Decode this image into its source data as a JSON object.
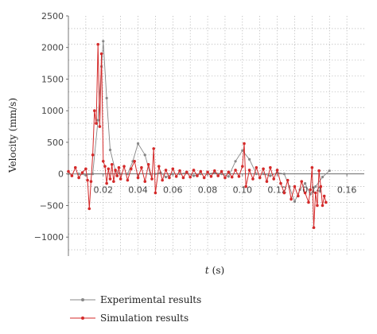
{
  "chart_data": {
    "type": "line",
    "xlabel_italic": "t",
    "xlabel_unit": "(s)",
    "ylabel": "Velocity (mm/s)",
    "xlim": [
      0,
      0.17
    ],
    "ylim": [
      -1300,
      2500
    ],
    "xticks": [
      0.02,
      0.04,
      0.06,
      0.08,
      0.1,
      0.12,
      0.14,
      0.16
    ],
    "xtick_labels": [
      "0.02",
      "0.04",
      "0.06",
      "0.08",
      "0.10",
      "0.12",
      "0.14",
      "0.16"
    ],
    "yticks": [
      -1000,
      -500,
      0,
      500,
      1000,
      1500,
      2000,
      2500
    ],
    "ytick_labels": [
      "−1000",
      "−500",
      "0",
      "500",
      "1000",
      "1500",
      "2000",
      "2500"
    ],
    "grid": true,
    "legend_position": "bottom",
    "series": [
      {
        "name": "Experimental results",
        "color": "#888888",
        "x": [
          0.0,
          0.006,
          0.01,
          0.014,
          0.017,
          0.019,
          0.02,
          0.022,
          0.024,
          0.027,
          0.03,
          0.034,
          0.037,
          0.04,
          0.044,
          0.047,
          0.05,
          0.053,
          0.056,
          0.06,
          0.064,
          0.068,
          0.072,
          0.076,
          0.08,
          0.084,
          0.088,
          0.092,
          0.096,
          0.1,
          0.104,
          0.108,
          0.112,
          0.116,
          0.12,
          0.124,
          0.127,
          0.13,
          0.133,
          0.136,
          0.139,
          0.142,
          0.146,
          0.15
        ],
        "y": [
          0,
          0,
          -20,
          0,
          850,
          1700,
          2100,
          1200,
          380,
          50,
          0,
          0,
          200,
          480,
          300,
          0,
          0,
          20,
          -50,
          0,
          0,
          20,
          -30,
          0,
          0,
          20,
          0,
          -40,
          200,
          370,
          230,
          0,
          0,
          -30,
          20,
          0,
          -200,
          -440,
          -250,
          -150,
          -320,
          -200,
          -50,
          50
        ]
      },
      {
        "name": "Simulation results",
        "color": "#d42a2a",
        "x": [
          0.0,
          0.002,
          0.004,
          0.006,
          0.008,
          0.01,
          0.011,
          0.012,
          0.013,
          0.014,
          0.015,
          0.016,
          0.017,
          0.018,
          0.019,
          0.02,
          0.021,
          0.022,
          0.023,
          0.024,
          0.025,
          0.026,
          0.027,
          0.028,
          0.029,
          0.03,
          0.032,
          0.034,
          0.036,
          0.038,
          0.04,
          0.042,
          0.044,
          0.046,
          0.048,
          0.049,
          0.05,
          0.052,
          0.054,
          0.056,
          0.058,
          0.06,
          0.062,
          0.064,
          0.066,
          0.068,
          0.07,
          0.072,
          0.074,
          0.076,
          0.078,
          0.08,
          0.082,
          0.084,
          0.086,
          0.088,
          0.09,
          0.092,
          0.094,
          0.096,
          0.098,
          0.1,
          0.101,
          0.102,
          0.104,
          0.106,
          0.108,
          0.11,
          0.112,
          0.114,
          0.116,
          0.118,
          0.12,
          0.122,
          0.124,
          0.126,
          0.128,
          0.13,
          0.132,
          0.134,
          0.136,
          0.138,
          0.139,
          0.14,
          0.141,
          0.142,
          0.143,
          0.144,
          0.145,
          0.146,
          0.147,
          0.148
        ],
        "y": [
          40,
          -30,
          100,
          -60,
          20,
          80,
          -100,
          -550,
          -120,
          300,
          1000,
          800,
          2050,
          750,
          1900,
          200,
          120,
          -150,
          80,
          -80,
          150,
          -120,
          60,
          -30,
          100,
          -80,
          120,
          -100,
          80,
          200,
          -60,
          100,
          -120,
          150,
          -80,
          400,
          -300,
          120,
          -100,
          60,
          -60,
          80,
          -40,
          50,
          -60,
          30,
          -50,
          60,
          -30,
          40,
          -60,
          30,
          -40,
          50,
          -30,
          40,
          -60,
          30,
          -50,
          60,
          -40,
          120,
          480,
          -200,
          60,
          -80,
          100,
          -60,
          80,
          -120,
          100,
          -80,
          60,
          -150,
          -300,
          -100,
          -400,
          -200,
          -350,
          -120,
          -300,
          -450,
          -250,
          100,
          -850,
          -300,
          -500,
          50,
          -200,
          -500,
          -350,
          -450
        ]
      }
    ]
  }
}
